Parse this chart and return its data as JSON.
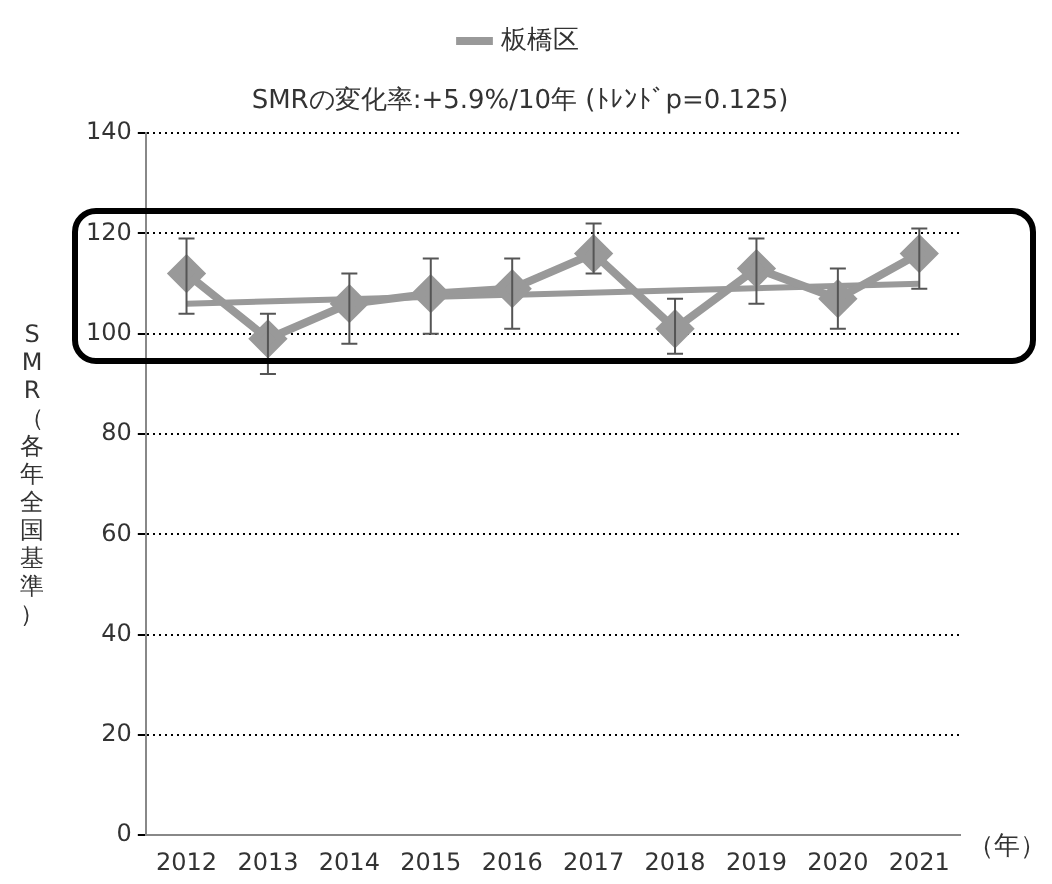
{
  "chart_data": {
    "type": "line",
    "title": "SMRの変化率:+5.9%/10年 (ﾄﾚﾝﾄﾞp=0.125)",
    "ylabel": "SMR（各年全国基準）",
    "xlabel": "（年）",
    "categories": [
      "2012",
      "2013",
      "2014",
      "2015",
      "2016",
      "2017",
      "2018",
      "2019",
      "2020",
      "2021"
    ],
    "series": [
      {
        "name": "板橋区",
        "color": "#999999",
        "values": [
          112,
          99,
          106,
          108,
          109,
          116,
          101,
          113,
          107,
          116
        ],
        "errors": [
          [
            104,
            119
          ],
          [
            92,
            104
          ],
          [
            98,
            112
          ],
          [
            100,
            115
          ],
          [
            101,
            115
          ],
          [
            112,
            122
          ],
          [
            96,
            107
          ],
          [
            106,
            119
          ],
          [
            101,
            113
          ],
          [
            109,
            121
          ]
        ]
      },
      {
        "color": "#999999",
        "marker": "none",
        "values": [
          106,
          null,
          null,
          null,
          null,
          null,
          null,
          null,
          null,
          110
        ]
      }
    ],
    "ylim": [
      0,
      140
    ],
    "yticks": [
      0,
      20,
      40,
      60,
      80,
      100,
      120,
      140
    ],
    "grid": "y",
    "legend": "top",
    "marker": "diamond",
    "line_style": "solid"
  }
}
